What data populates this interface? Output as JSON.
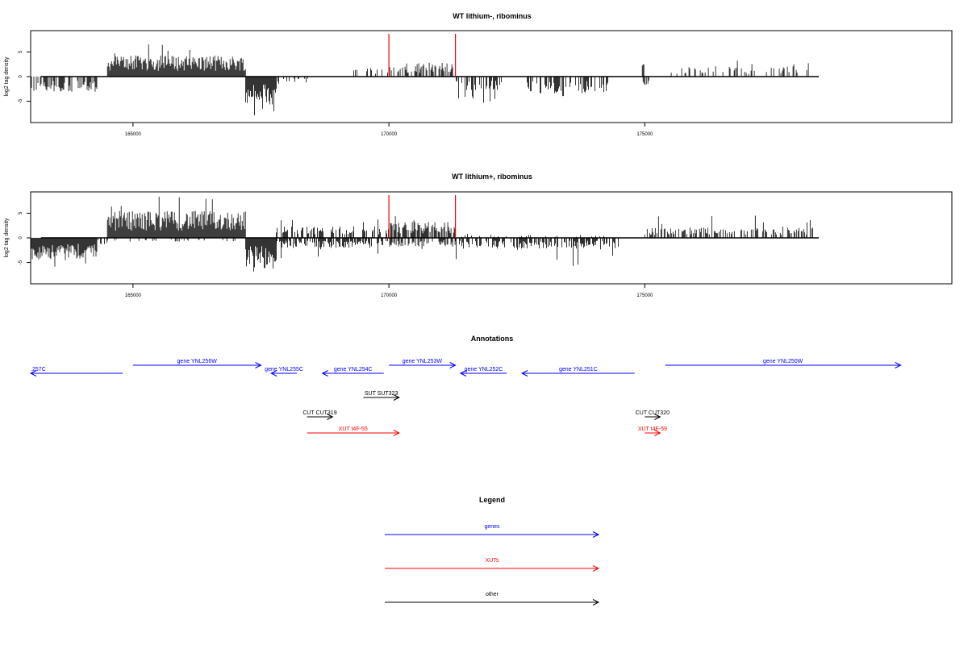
{
  "colors": {
    "gene": "#0000ff",
    "xut": "#ff0000",
    "other": "#000000",
    "marker": "#ff0000",
    "bars": "#000000"
  },
  "chart_data": [
    {
      "type": "bar",
      "title": "WT lithium-, ribominus",
      "ylabel": "log2 tag density",
      "xlim": [
        163000,
        181000
      ],
      "ylim": [
        -9,
        9
      ],
      "xticks": [
        165000,
        170000,
        175000
      ],
      "yticks": [
        -5,
        0,
        5
      ],
      "markers": [
        170000,
        171300
      ],
      "segments": [
        {
          "start": 163000,
          "end": 164300,
          "strand": "minus",
          "mean": 2.4,
          "max": 4.5,
          "density": 0.55
        },
        {
          "start": 164500,
          "end": 167200,
          "strand": "plus",
          "mean": 3.3,
          "max": 6.8,
          "density": 1.0
        },
        {
          "start": 167200,
          "end": 167800,
          "strand": "minus",
          "mean": 4.5,
          "max": 8.3,
          "density": 1.0
        },
        {
          "start": 167800,
          "end": 168500,
          "strand": "minus",
          "mean": 1.0,
          "max": 2.0,
          "density": 0.25
        },
        {
          "start": 169200,
          "end": 170000,
          "strand": "plus",
          "mean": 1.5,
          "max": 2.7,
          "density": 0.2
        },
        {
          "start": 170000,
          "end": 171300,
          "strand": "plus",
          "mean": 2.2,
          "max": 3.8,
          "density": 0.55
        },
        {
          "start": 171300,
          "end": 172200,
          "strand": "minus",
          "mean": 2.2,
          "max": 5.8,
          "density": 0.45
        },
        {
          "start": 172700,
          "end": 174300,
          "strand": "minus",
          "mean": 2.6,
          "max": 4.5,
          "density": 0.5
        },
        {
          "start": 174950,
          "end": 175100,
          "strand": "minus",
          "mean": 1.5,
          "max": 2.2,
          "density": 0.4
        },
        {
          "start": 174950,
          "end": 175000,
          "strand": "plus",
          "mean": 2.5,
          "max": 2.5,
          "density": 0.5
        },
        {
          "start": 175500,
          "end": 178200,
          "strand": "plus",
          "mean": 1.6,
          "max": 3.5,
          "density": 0.18
        }
      ]
    },
    {
      "type": "bar",
      "title": "WT lithium+, ribominus",
      "ylabel": "log2 tag density",
      "xlim": [
        163000,
        181000
      ],
      "ylim": [
        -9,
        9
      ],
      "xticks": [
        165000,
        170000,
        175000
      ],
      "yticks": [
        -5,
        0,
        5
      ],
      "markers": [
        170000,
        171300
      ],
      "segments": [
        {
          "start": 163000,
          "end": 164300,
          "strand": "minus",
          "mean": 3.5,
          "max": 6.2,
          "density": 1.0
        },
        {
          "start": 164300,
          "end": 164500,
          "strand": "minus",
          "mean": 1.0,
          "max": 2.5,
          "density": 0.4
        },
        {
          "start": 164500,
          "end": 167200,
          "strand": "plus",
          "mean": 4.2,
          "max": 8.4,
          "density": 1.0
        },
        {
          "start": 164500,
          "end": 167200,
          "strand": "minus",
          "mean": 0.6,
          "max": 1.0,
          "density": 0.15
        },
        {
          "start": 167200,
          "end": 167800,
          "strand": "minus",
          "mean": 4.8,
          "max": 8.3,
          "density": 1.0
        },
        {
          "start": 167800,
          "end": 170000,
          "strand": "minus",
          "mean": 1.6,
          "max": 4.2,
          "density": 0.6
        },
        {
          "start": 167800,
          "end": 170000,
          "strand": "plus",
          "mean": 1.8,
          "max": 4.5,
          "density": 0.5
        },
        {
          "start": 170000,
          "end": 171300,
          "strand": "plus",
          "mean": 2.5,
          "max": 6.0,
          "density": 0.8
        },
        {
          "start": 170000,
          "end": 171300,
          "strand": "minus",
          "mean": 1.4,
          "max": 2.5,
          "density": 0.45
        },
        {
          "start": 171300,
          "end": 174500,
          "strand": "minus",
          "mean": 1.7,
          "max": 5.8,
          "density": 0.6
        },
        {
          "start": 171300,
          "end": 174500,
          "strand": "plus",
          "mean": 0.5,
          "max": 1.0,
          "density": 0.1
        },
        {
          "start": 175000,
          "end": 178300,
          "strand": "plus",
          "mean": 1.6,
          "max": 4.5,
          "density": 0.5
        }
      ]
    }
  ],
  "annotations": {
    "title": "Annotations",
    "features": [
      {
        "label": ".257C",
        "type": "gene",
        "start": 163000,
        "end": 164800,
        "strand": "minus",
        "row": 1
      },
      {
        "label": "gene YNL256W",
        "type": "gene",
        "start": 165000,
        "end": 167500,
        "strand": "plus",
        "row": 0
      },
      {
        "label": "gene YNL255C",
        "type": "gene",
        "start": 167700,
        "end": 168200,
        "strand": "minus",
        "row": 1
      },
      {
        "label": "gene YNL254C",
        "type": "gene",
        "start": 168700,
        "end": 169900,
        "strand": "minus",
        "row": 1
      },
      {
        "label": "gene YNL253W",
        "type": "gene",
        "start": 170000,
        "end": 171300,
        "strand": "plus",
        "row": 0
      },
      {
        "label": "gene YNL252C",
        "type": "gene",
        "start": 171400,
        "end": 172300,
        "strand": "minus",
        "row": 1
      },
      {
        "label": "gene YNL251C",
        "type": "gene",
        "start": 172600,
        "end": 174800,
        "strand": "minus",
        "row": 1
      },
      {
        "label": "gene YNL250W",
        "type": "gene",
        "start": 175400,
        "end": 180000,
        "strand": "plus",
        "row": 0
      },
      {
        "label": "SUT SUT323",
        "type": "other",
        "start": 169500,
        "end": 170200,
        "strand": "plus",
        "row": 2
      },
      {
        "label": "CUT CUT319",
        "type": "other",
        "start": 168400,
        "end": 168900,
        "strand": "plus",
        "row": 3
      },
      {
        "label": "CUT CUT320",
        "type": "other",
        "start": 175000,
        "end": 175300,
        "strand": "plus",
        "row": 3
      },
      {
        "label": "XUT t4F-55",
        "type": "xut",
        "start": 168400,
        "end": 170200,
        "strand": "plus",
        "row": 4
      },
      {
        "label": "XUT t4F-59",
        "type": "xut",
        "start": 175000,
        "end": 175300,
        "strand": "plus",
        "row": 4
      }
    ]
  },
  "legend": {
    "title": "Legend",
    "items": [
      {
        "label": "genes",
        "type": "gene"
      },
      {
        "label": "XUTs",
        "type": "xut"
      },
      {
        "label": "other",
        "type": "other"
      }
    ]
  }
}
